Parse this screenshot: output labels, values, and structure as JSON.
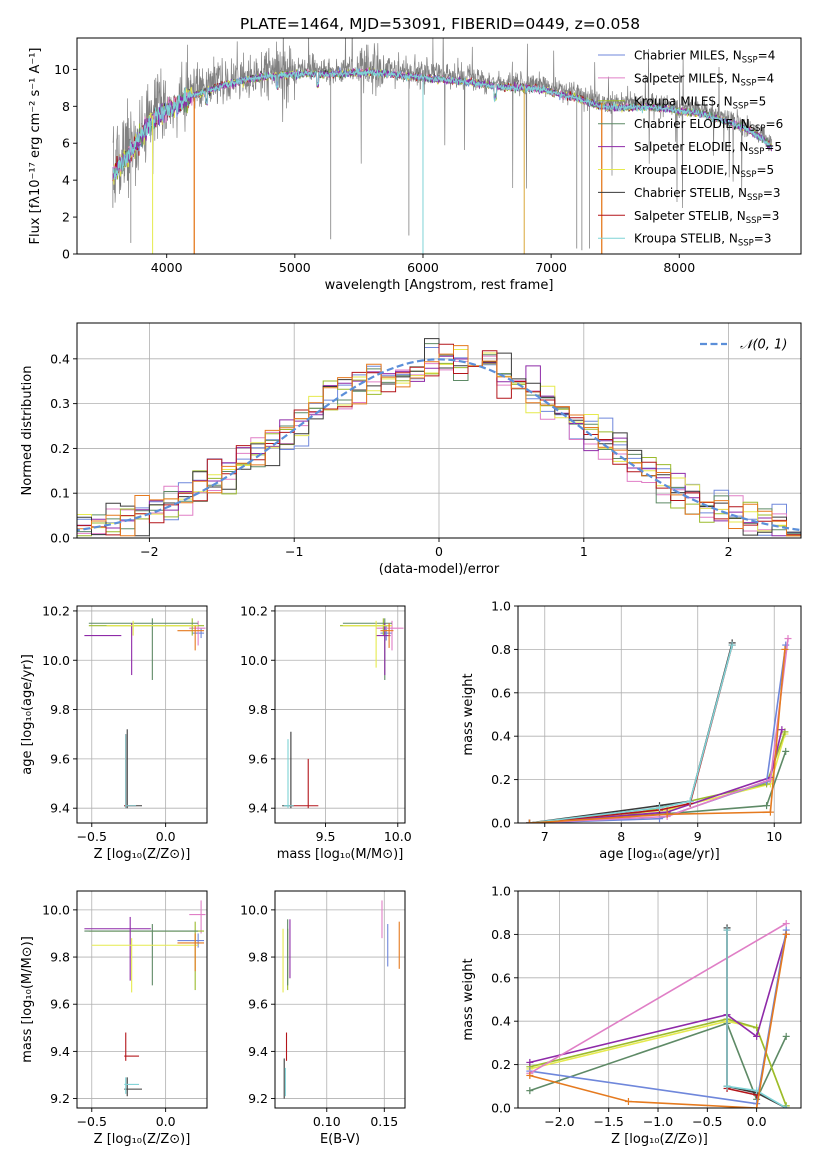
{
  "title": "PLATE=1464, MJD=53091, FIBERID=0449, z=0.058",
  "colors": {
    "Chabrier MILES": "#6f87db",
    "Salpeter MILES": "#e07fc6",
    "Kroupa MILES": "#9bbb2d",
    "Chabrier ELODIE": "#5e8a66",
    "Salpeter ELODIE": "#8e2aa8",
    "Kroupa ELODIE": "#e6ea4e",
    "Chabrier STELIB": "#3a3a3a",
    "Salpeter STELIB": "#b3151a",
    "Kroupa STELIB": "#7fd3d6",
    "orange": "#e57a1f",
    "gray": "#808080",
    "normal": "#5b8fd9"
  },
  "chart_data": [
    {
      "type": "line",
      "id": "spectrum",
      "xlabel": "wavelength [Angstrom, rest frame]",
      "ylabel": "Flux [fλ10⁻¹⁷ erg cm⁻² s⁻¹ A⁻¹]",
      "xlim": [
        3300,
        8950
      ],
      "ylim": [
        0,
        11.7
      ],
      "xticks": [
        4000,
        5000,
        6000,
        7000,
        8000
      ],
      "yticks": [
        0,
        2,
        4,
        6,
        8,
        10
      ],
      "grid": false,
      "legend_position": "top-right",
      "legend": [
        {
          "name": "Chabrier MILES",
          "nssp": "4"
        },
        {
          "name": "Salpeter MILES",
          "nssp": "4"
        },
        {
          "name": "Kroupa MILES",
          "nssp": "5"
        },
        {
          "name": "Chabrier ELODIE",
          "nssp": "6"
        },
        {
          "name": "Salpeter ELODIE",
          "nssp": "5"
        },
        {
          "name": "Kroupa ELODIE",
          "nssp": "5"
        },
        {
          "name": "Chabrier STELIB",
          "nssp": "3"
        },
        {
          "name": "Salpeter STELIB",
          "nssp": "3"
        },
        {
          "name": "Kroupa STELIB",
          "nssp": "3"
        }
      ],
      "data_envelope": [
        [
          3580,
          4.6
        ],
        [
          3700,
          5.5
        ],
        [
          3850,
          7.2
        ],
        [
          3950,
          7.9
        ],
        [
          4050,
          8.2
        ],
        [
          4200,
          8.8
        ],
        [
          4400,
          9.3
        ],
        [
          4700,
          9.8
        ],
        [
          5000,
          10.0
        ],
        [
          5300,
          10.0
        ],
        [
          5600,
          10.1
        ],
        [
          6000,
          9.8
        ],
        [
          6300,
          9.6
        ],
        [
          6600,
          9.3
        ],
        [
          6900,
          9.2
        ],
        [
          7200,
          8.7
        ],
        [
          7400,
          8.2
        ],
        [
          7800,
          8.2
        ],
        [
          8200,
          7.8
        ],
        [
          8500,
          7.1
        ],
        [
          8650,
          6.5
        ],
        [
          8720,
          6.0
        ]
      ],
      "data_range_x": [
        3580,
        8720
      ],
      "model_range_x": [
        3580,
        8720
      ]
    },
    {
      "type": "bar",
      "id": "residual_hist",
      "xlabel": "(data-model)/error",
      "ylabel": "Normed distribution",
      "xlim": [
        -2.5,
        2.5
      ],
      "ylim": [
        0,
        0.48
      ],
      "xticks": [
        -2,
        -1,
        0,
        1,
        2
      ],
      "xticklabels": [
        "−2",
        "−1",
        "0",
        "1",
        "2"
      ],
      "yticks": [
        0.0,
        0.1,
        0.2,
        0.3,
        0.4
      ],
      "yticklabels": [
        "0.0",
        "0.1",
        "0.2",
        "0.3",
        "0.4"
      ],
      "grid": true,
      "legend_position": "top-right",
      "legend_label": "𝒩(0, 1)",
      "bin_width": 0.1
    },
    {
      "type": "scatter",
      "id": "age_vs_Z",
      "xlabel": "Z [log₁₀(Z/Z⊙)]",
      "ylabel": "age  [log₁₀(age/yr)]",
      "xlim": [
        -0.6,
        0.28
      ],
      "ylim": [
        9.34,
        10.22
      ],
      "xticks": [
        -0.5,
        0.0
      ],
      "xticklabels": [
        "−0.5",
        "0.0"
      ],
      "yticks": [
        9.4,
        9.6,
        9.8,
        10.0,
        10.2
      ],
      "yticklabels": [
        "9.4",
        "9.6",
        "9.8",
        "10.0",
        "10.2"
      ],
      "grid": true
    },
    {
      "type": "scatter",
      "id": "age_vs_mass",
      "xlabel": "mass [log₁₀(M/M⊙)]",
      "ylabel": "",
      "xlim": [
        9.15,
        10.05
      ],
      "ylim": [
        9.34,
        10.22
      ],
      "xticks": [
        9.5,
        10.0
      ],
      "xticklabels": [
        "9.5",
        "10.0"
      ],
      "yticks": [
        9.4,
        9.6,
        9.8,
        10.0,
        10.2
      ],
      "yticklabels": [
        "9.4",
        "9.6",
        "9.8",
        "10.0",
        "10.2"
      ],
      "grid": true
    },
    {
      "type": "line",
      "id": "weight_vs_age",
      "xlabel": "age  [log₁₀(age/yr)]",
      "ylabel": "mass weight",
      "xlim": [
        6.65,
        10.35
      ],
      "ylim": [
        0.0,
        1.0
      ],
      "xticks": [
        7,
        8,
        9,
        10
      ],
      "xticklabels": [
        "7",
        "8",
        "9",
        "10"
      ],
      "yticks": [
        0.0,
        0.2,
        0.4,
        0.6,
        0.8,
        1.0
      ],
      "yticklabels": [
        "0.0",
        "0.2",
        "0.4",
        "0.6",
        "0.8",
        "1.0"
      ],
      "grid": true
    },
    {
      "type": "scatter",
      "id": "mass_vs_Z",
      "xlabel": "Z [log₁₀(Z/Z⊙)]",
      "ylabel": "mass [log₁₀(M/M⊙)]",
      "xlim": [
        -0.6,
        0.28
      ],
      "ylim": [
        9.16,
        10.08
      ],
      "xticks": [
        -0.5,
        0.0
      ],
      "xticklabels": [
        "−0.5",
        "0.0"
      ],
      "yticks": [
        9.2,
        9.4,
        9.6,
        9.8,
        10.0
      ],
      "yticklabels": [
        "9.2",
        "9.4",
        "9.6",
        "9.8",
        "10.0"
      ],
      "grid": true
    },
    {
      "type": "scatter",
      "id": "mass_vs_EBV",
      "xlabel": "E(B-V)",
      "ylabel": "",
      "xlim": [
        0.055,
        0.168
      ],
      "ylim": [
        9.16,
        10.08
      ],
      "xticks": [
        0.1,
        0.15
      ],
      "xticklabels": [
        "0.10",
        "0.15"
      ],
      "yticks": [
        9.2,
        9.4,
        9.6,
        9.8,
        10.0
      ],
      "yticklabels": [
        "9.2",
        "9.4",
        "9.6",
        "9.8",
        "10.0"
      ],
      "grid": true
    },
    {
      "type": "line",
      "id": "weight_vs_Z",
      "xlabel": "Z [log₁₀(Z/Z⊙)]",
      "ylabel": "mass weight",
      "xlim": [
        -2.42,
        0.45
      ],
      "ylim": [
        0.0,
        1.0
      ],
      "xticks": [
        -2.0,
        -1.5,
        -1.0,
        -0.5,
        0.0
      ],
      "xticklabels": [
        "−2.0",
        "−1.5",
        "−1.0",
        "−0.5",
        "0.0"
      ],
      "yticks": [
        0.0,
        0.2,
        0.4,
        0.6,
        0.8,
        1.0
      ],
      "yticklabels": [
        "0.0",
        "0.2",
        "0.4",
        "0.6",
        "0.8",
        "1.0"
      ],
      "grid": true
    }
  ]
}
